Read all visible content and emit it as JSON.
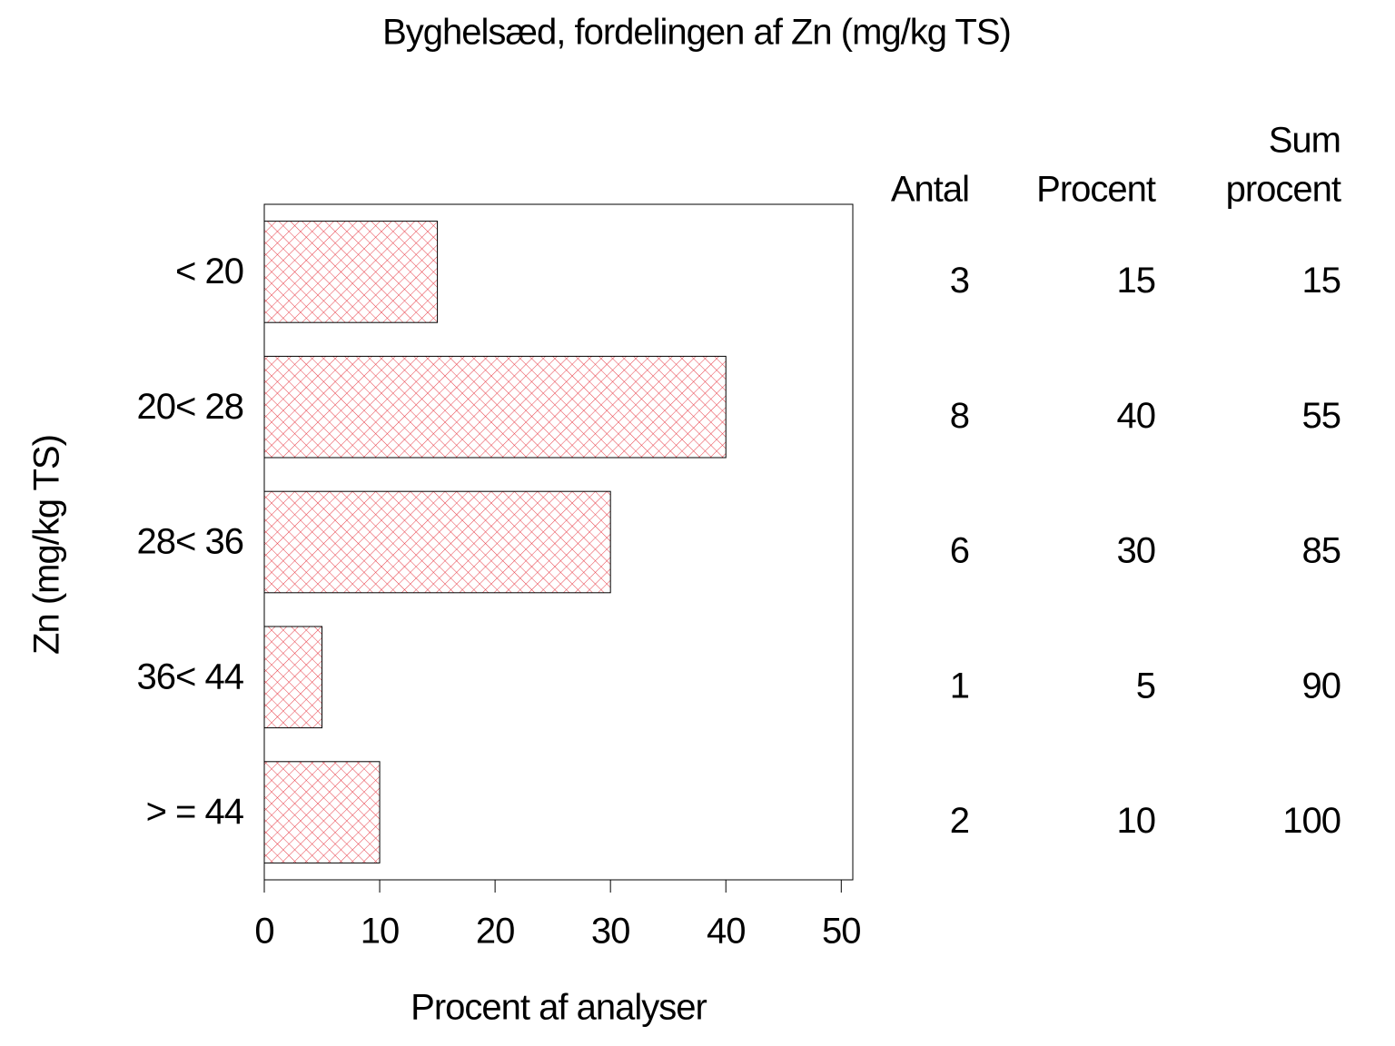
{
  "chart_data": {
    "type": "bar",
    "orientation": "horizontal",
    "title": "Byghelsæd, fordelingen af Zn (mg/kg TS)",
    "y_label": "Zn (mg/kg TS)",
    "x_label": "Procent af analyser",
    "categories": [
      "< 20",
      "20< 28",
      "28< 36",
      "36< 44",
      "> = 44"
    ],
    "values": [
      15,
      40,
      30,
      5,
      10
    ],
    "color": "#e8404a",
    "xlim": [
      0,
      51
    ],
    "xticks": [
      0,
      10,
      20,
      30,
      40,
      50
    ],
    "table": {
      "headers": [
        [
          "Antal"
        ],
        [
          "Procent"
        ],
        [
          "Sum",
          "procent"
        ]
      ],
      "counts": [
        3,
        8,
        6,
        1,
        2
      ],
      "cumulative_percent": [
        15,
        55,
        85,
        90,
        100
      ]
    }
  }
}
